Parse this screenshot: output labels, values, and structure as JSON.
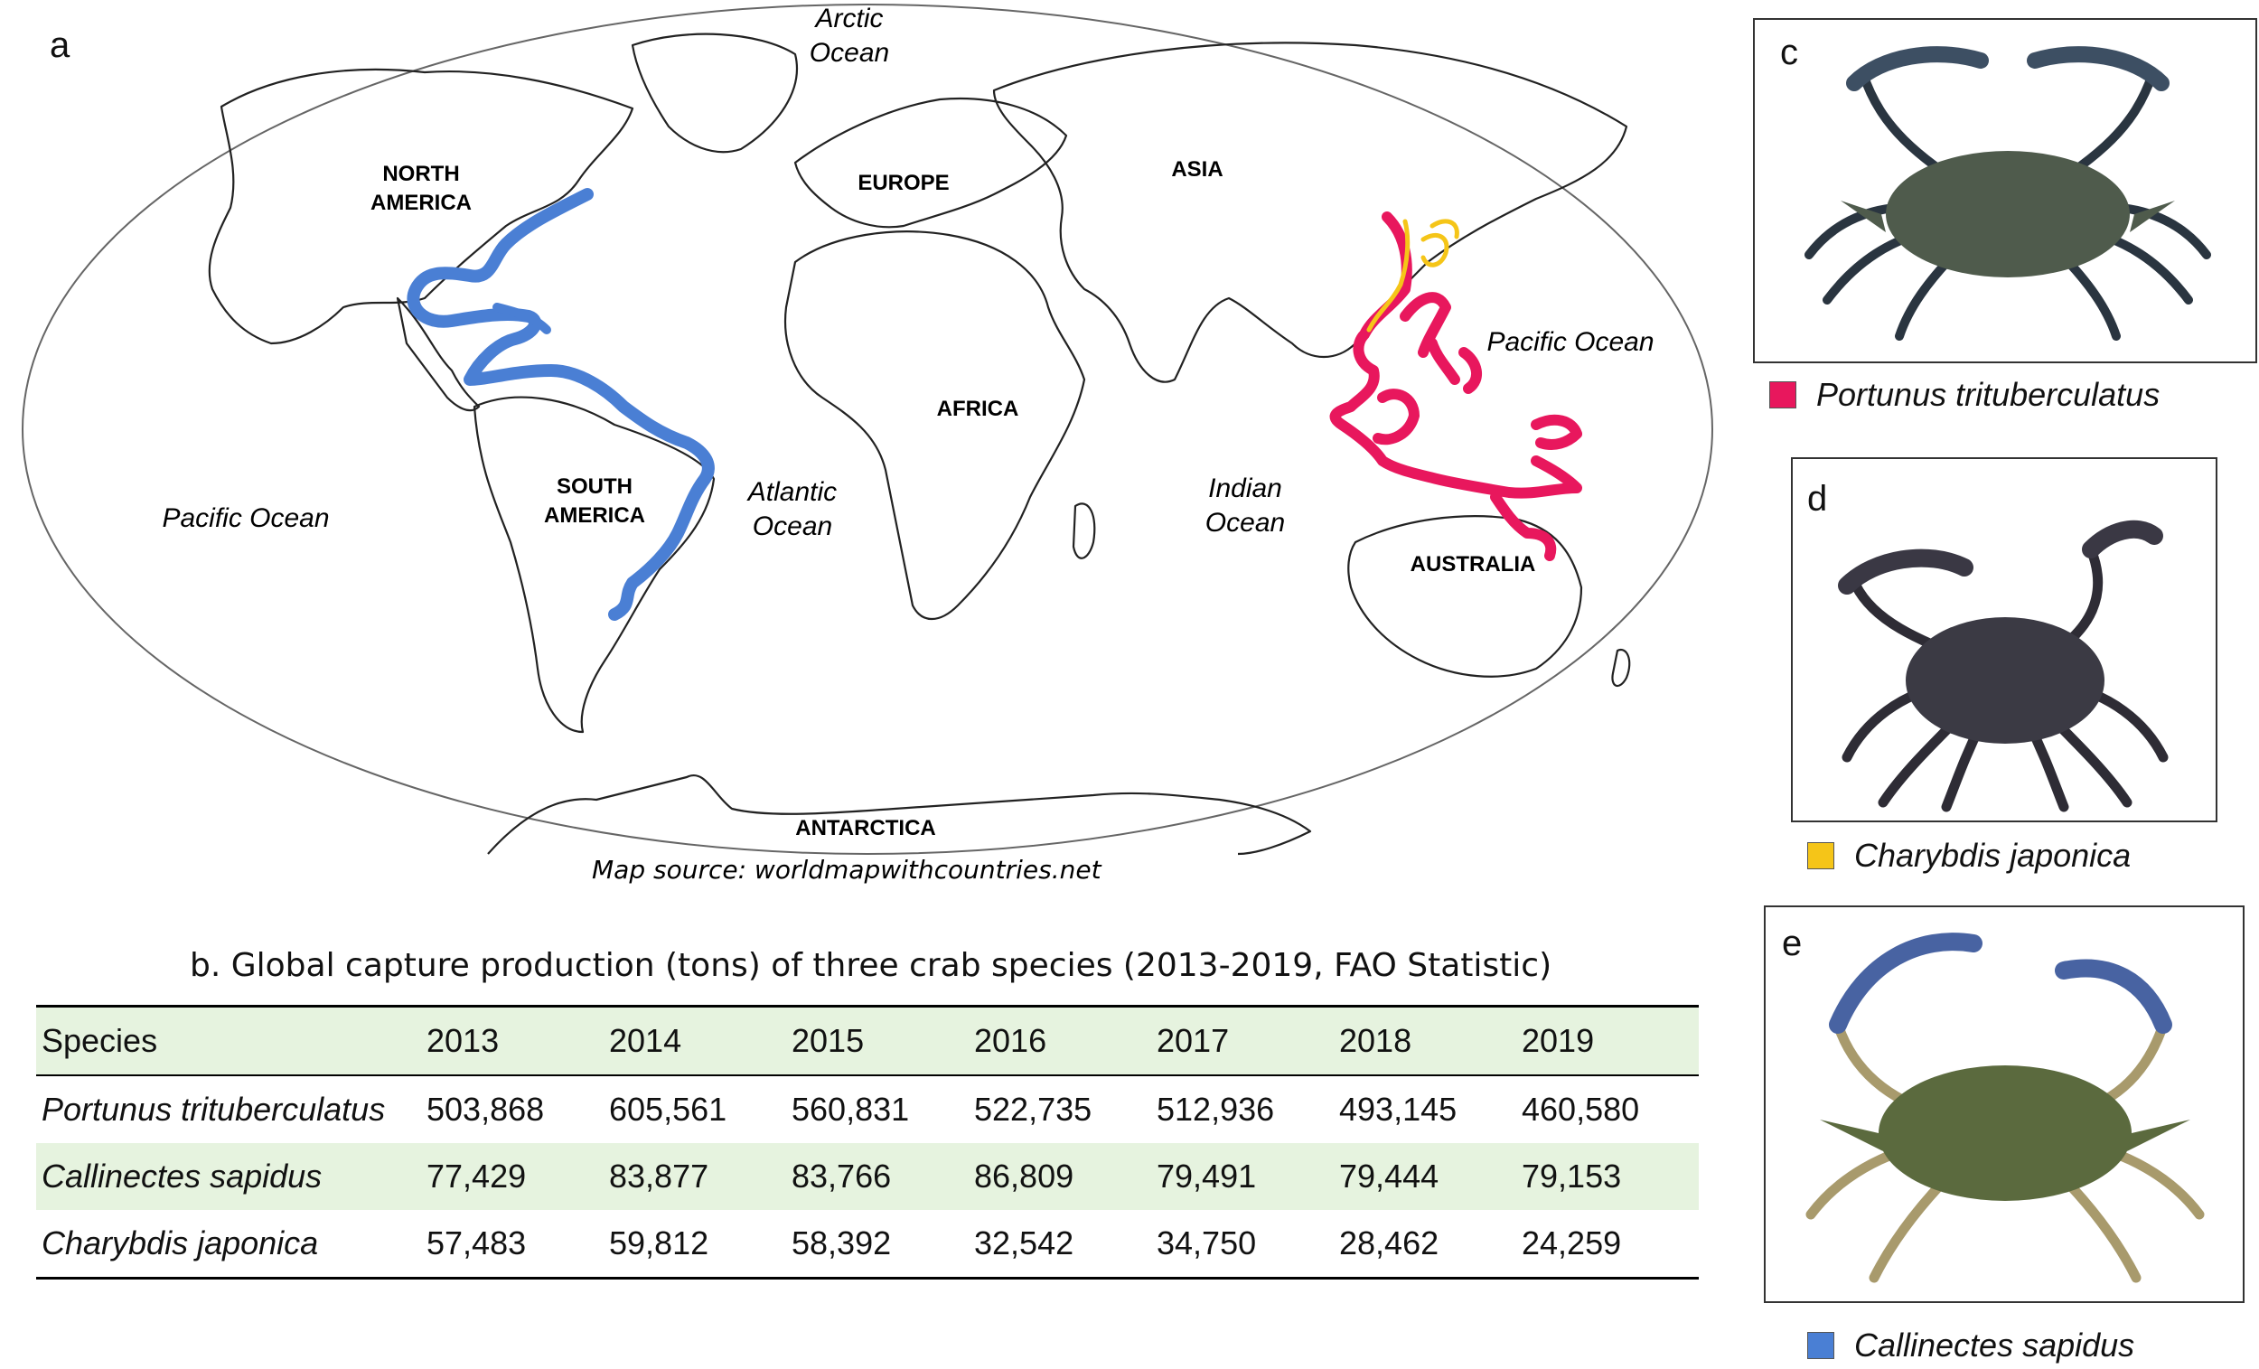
{
  "panels": {
    "a": "a",
    "b_title": "b. Global capture production (tons) of three crab species (2013-2019, FAO Statistic)",
    "c": "c",
    "d": "d",
    "e": "e"
  },
  "map": {
    "regions": [
      "NORTH",
      "AMERICA",
      "SOUTH",
      "AMERICA",
      "EUROPE",
      "ASIA",
      "AFRICA",
      "AUSTRALIA",
      "ANTARCTICA"
    ],
    "oceans": {
      "arctic_1": "Arctic",
      "arctic_2": "Ocean",
      "pacific_west": "Pacific Ocean",
      "atlantic_1": "Atlantic",
      "atlantic_2": "Ocean",
      "indian_1": "Indian",
      "indian_2": "Ocean",
      "pacific_east": "Pacific Ocean"
    },
    "source": "Map source: worldmapwithcountries.net",
    "distribution_colors": {
      "Callinectes sapidus": "#4a7fd4",
      "Portunus trituberculatus": "#e8175d",
      "Charybdis japonica": "#f5c518"
    }
  },
  "table": {
    "headers": [
      "Species",
      "2013",
      "2014",
      "2015",
      "2016",
      "2017",
      "2018",
      "2019"
    ],
    "rows": [
      {
        "species": "Portunus trituberculatus",
        "values": [
          "503,868",
          "605,561",
          "560,831",
          "522,735",
          "512,936",
          "493,145",
          "460,580"
        ]
      },
      {
        "species": "Callinectes sapidus",
        "values": [
          "77,429",
          "83,877",
          "83,766",
          "86,809",
          "79,491",
          "79,444",
          "79,153"
        ]
      },
      {
        "species": "Charybdis japonica",
        "values": [
          "57,483",
          "59,812",
          "58,392",
          "32,542",
          "34,750",
          "28,462",
          "24,259"
        ]
      }
    ]
  },
  "legend": [
    {
      "label": "Portunus trituberculatus",
      "color": "#e8175d"
    },
    {
      "label": "Charybdis japonica",
      "color": "#f5c518"
    },
    {
      "label": "Callinectes sapidus",
      "color": "#4a7fd4"
    }
  ]
}
